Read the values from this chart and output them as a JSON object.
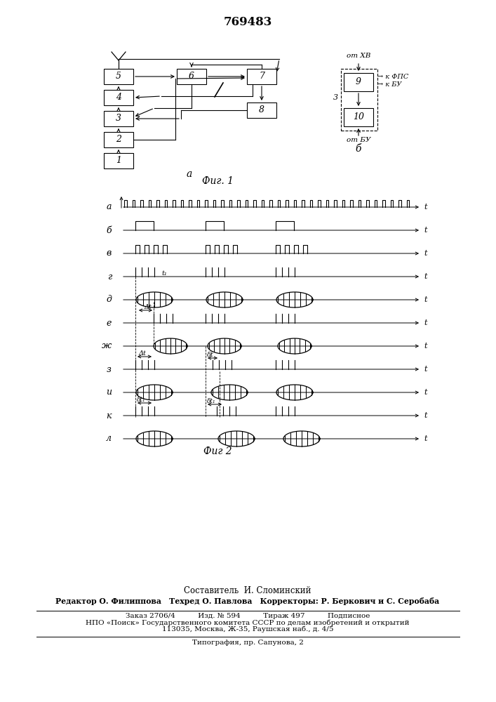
{
  "title": "769483",
  "fig1_caption": "Фиг. 1",
  "fig2_caption": "Фиг 2",
  "label_a": "а",
  "label_b_diag": "б",
  "ot_hv": "от ХВ",
  "k_fps": "→ к ФПС",
  "k_bu": "→ к БУ",
  "label_3": "3",
  "ot_bu": "от БУ",
  "footer_line1": "Составитель  И. Сломинский",
  "footer_line2": "Редактор О. Филиппова   Техред О. Павлова   Корректоры: Р. Беркович и С. Серобаба",
  "footer_line3": "Заказ 2706/4          Изд. № 594          Тираж 497          Подписное",
  "footer_line4": "НПО «Поиск» Государственного комитета СССР по делам изобретений и открытий",
  "footer_line5": "113035, Москва, Ж-35, Раушская наб., д. 4/5",
  "footer_line6": "Типография, пр. Сапунова, 2",
  "wf_labels": [
    "а",
    "б",
    "в",
    "г",
    "д",
    "е",
    "ж",
    "з",
    "и",
    "к",
    "л"
  ],
  "bg_color": "#ffffff",
  "line_color": "#000000"
}
